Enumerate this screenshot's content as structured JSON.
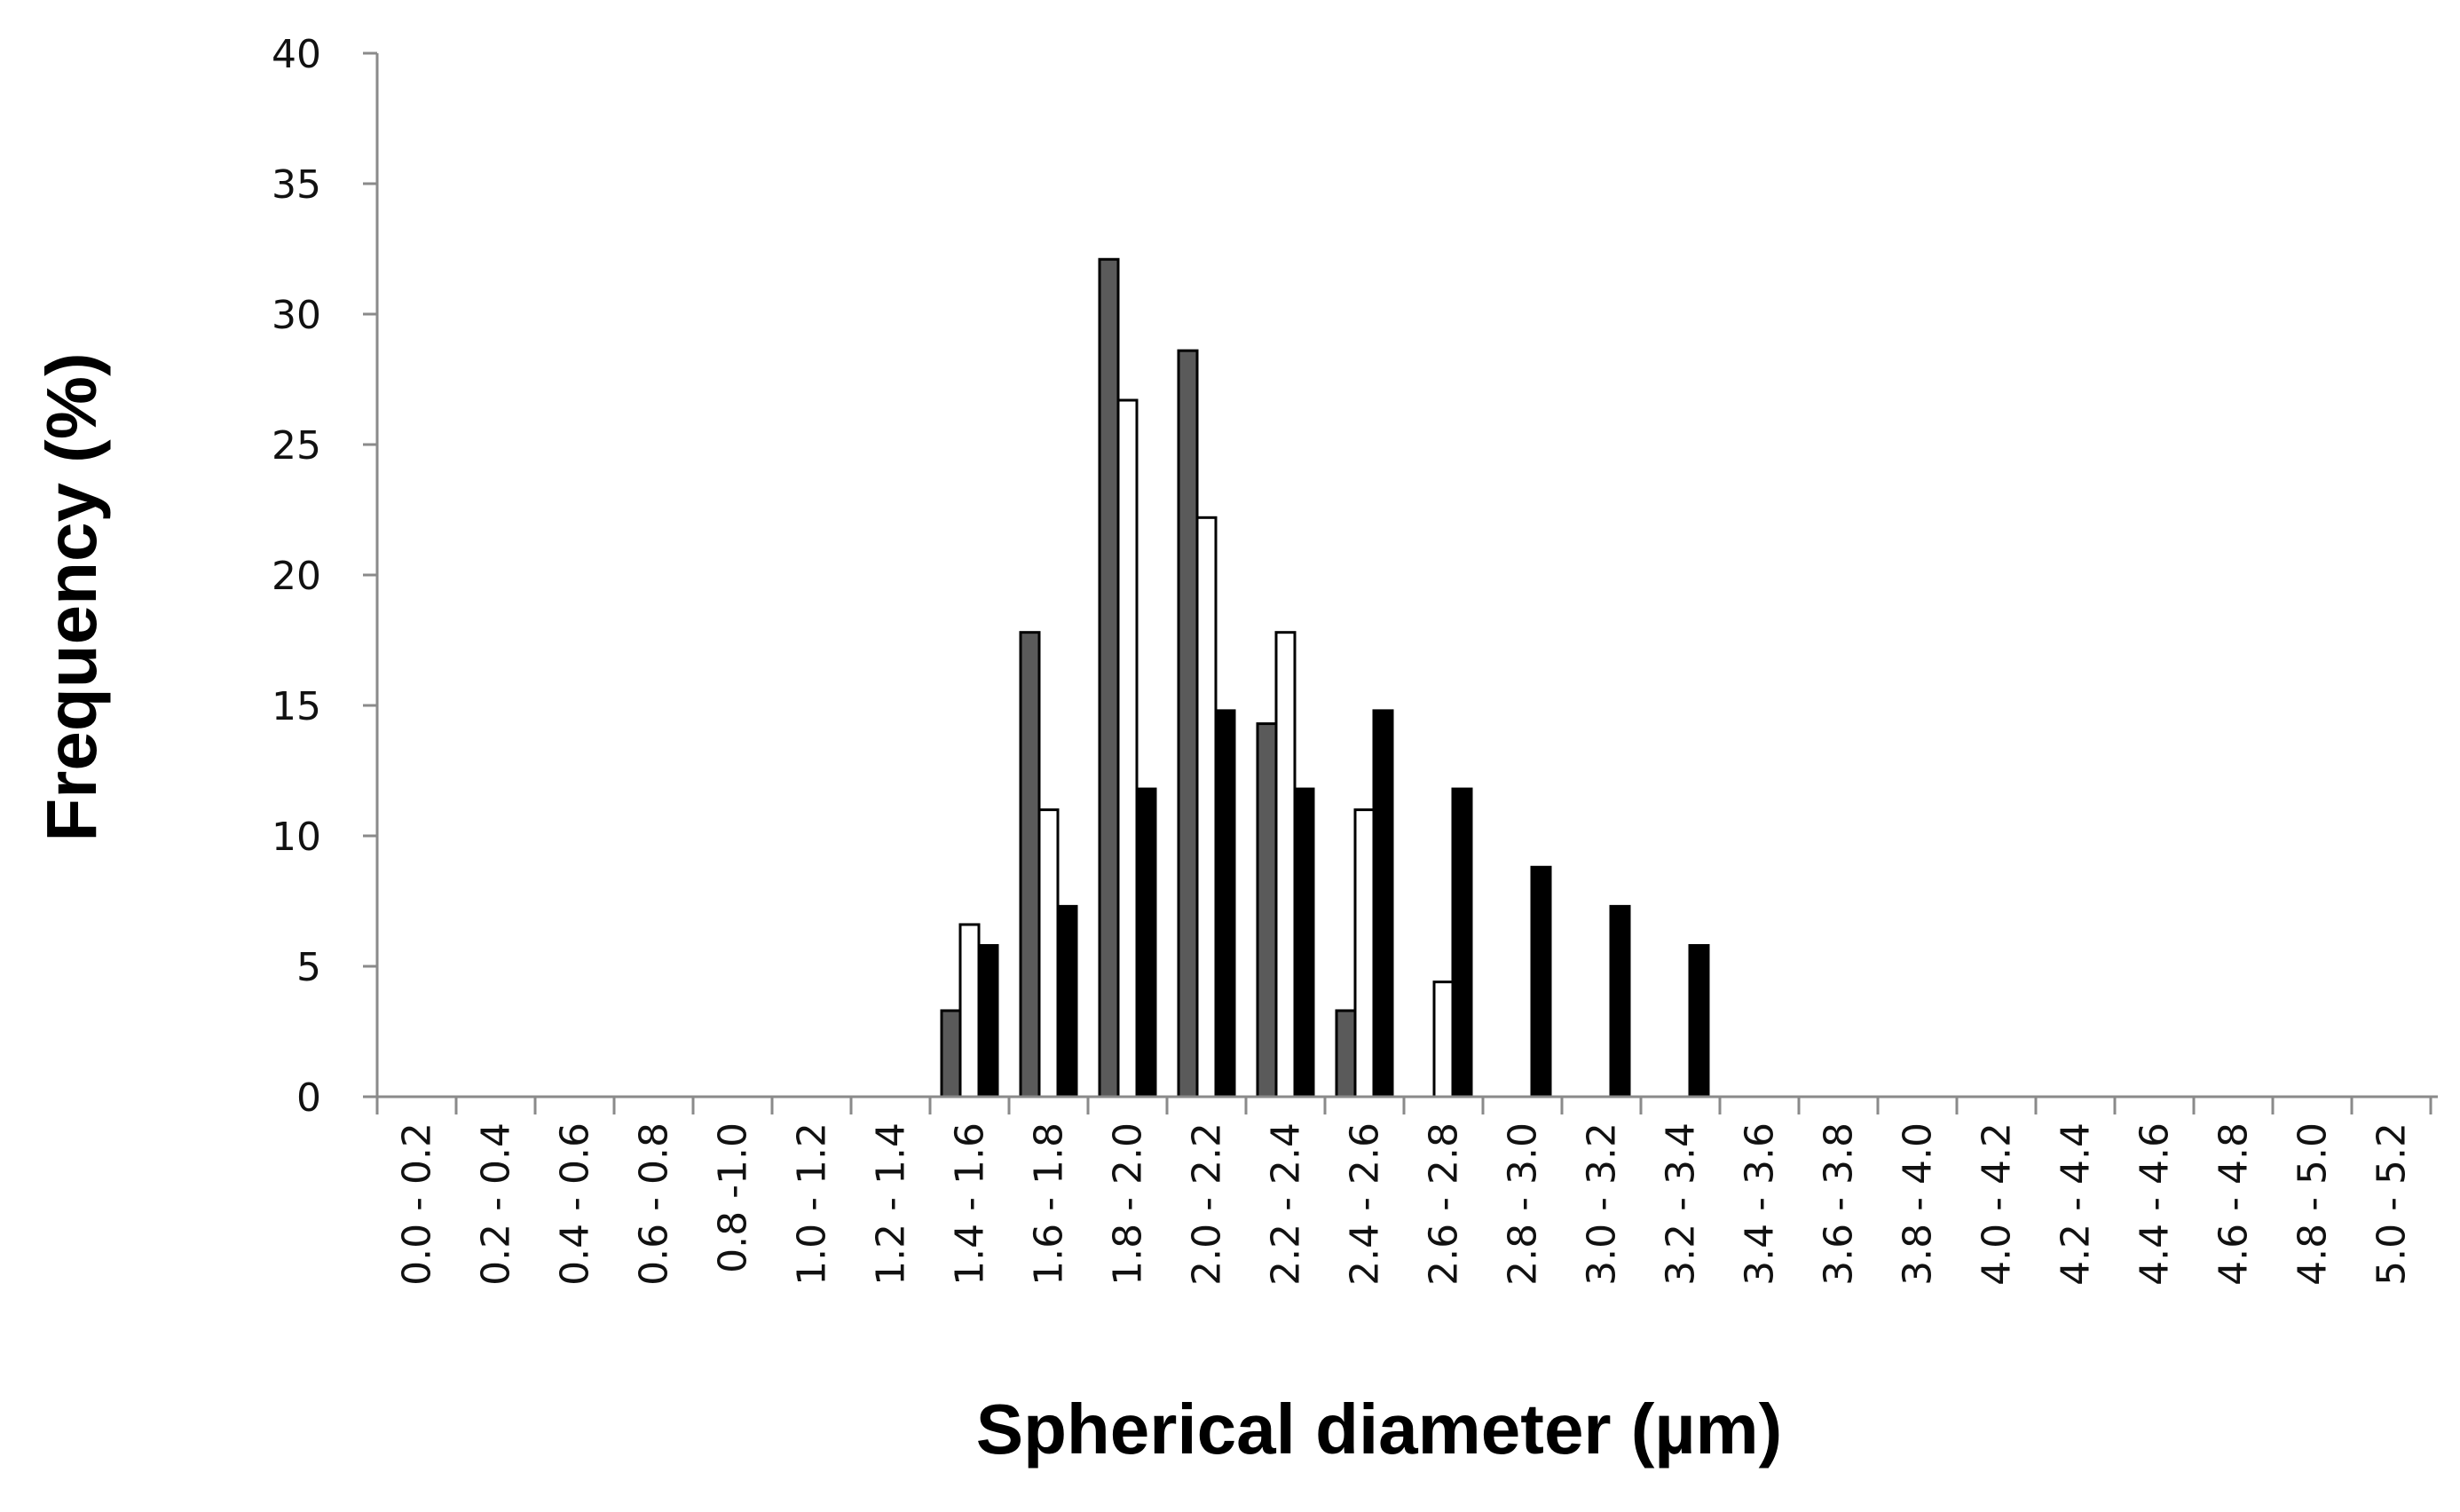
{
  "chart_data": {
    "type": "bar",
    "xlabel": "Spherical diameter (µm)",
    "ylabel": "Frequency (%)",
    "ylim": [
      0,
      40
    ],
    "yticks": [
      "0",
      "5",
      "10",
      "15",
      "20",
      "25",
      "30",
      "35",
      "40"
    ],
    "grid": false,
    "categories": [
      "0.0 - 0.2",
      "0.2 - 0.4",
      "0.4 - 0.6",
      "0.6 - 0.8",
      "0.8 -1.0",
      "1.0 - 1.2",
      "1.2 - 1.4",
      "1.4 - 1.6",
      "1.6 - 1.8",
      "1.8 - 2.0",
      "2.0 - 2.2",
      "2.2 - 2.4",
      "2.4 - 2.6",
      "2.6 - 2.8",
      "2.8 - 3.0",
      "3.0 - 3.2",
      "3.2 - 3.4",
      "3.4 - 3.6",
      "3.6 - 3.8",
      "3.8 - 4.0",
      "4.0 - 4.2",
      "4.2 - 4.4",
      "4.4 - 4.6",
      "4.6 - 4.8",
      "4.8 - 5.0",
      "5.0 - 5.2"
    ],
    "series": [
      {
        "color": "#5a5a5a",
        "values": [
          0,
          0,
          0,
          0,
          0,
          0,
          0,
          3.3,
          17.8,
          32.1,
          28.6,
          14.3,
          3.3,
          0,
          0,
          0,
          0,
          0,
          0,
          0,
          0,
          0,
          0,
          0,
          0,
          0
        ]
      },
      {
        "color": "#ffffff",
        "values": [
          0,
          0,
          0,
          0,
          0,
          0,
          0,
          6.6,
          11.0,
          26.7,
          22.2,
          17.8,
          11.0,
          4.4,
          0,
          0,
          0,
          0,
          0,
          0,
          0,
          0,
          0,
          0,
          0,
          0
        ]
      },
      {
        "color": "#000000",
        "values": [
          0,
          0,
          0,
          0,
          0,
          0,
          0,
          5.8,
          7.3,
          11.8,
          14.8,
          11.8,
          14.8,
          11.8,
          8.8,
          7.3,
          5.8,
          0,
          0,
          0,
          0,
          0,
          0,
          0,
          0,
          0
        ]
      }
    ]
  }
}
